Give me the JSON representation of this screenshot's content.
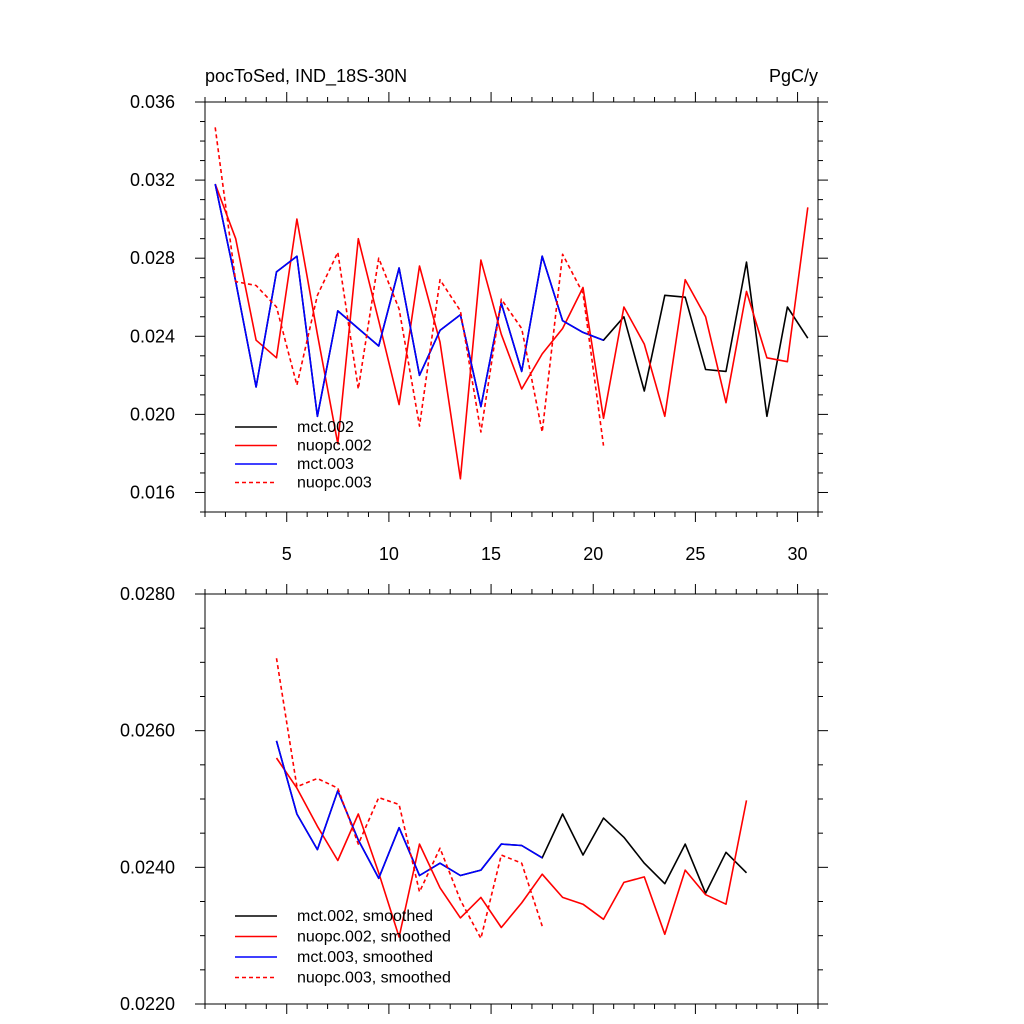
{
  "chart_data": [
    {
      "type": "line",
      "title_left": "pocToSed, IND_18S-30N",
      "title_right": "PgC/y",
      "xlabel": "",
      "ylabel": "",
      "xlim": [
        1,
        31
      ],
      "ylim": [
        0.015,
        0.036
      ],
      "xticks": [
        5,
        10,
        15,
        20,
        25,
        30
      ],
      "xtick_labels": [
        "5",
        "10",
        "15",
        "20",
        "25",
        "30"
      ],
      "yticks": [
        0.016,
        0.02,
        0.024,
        0.028,
        0.032,
        0.036
      ],
      "ytick_labels": [
        "0.016",
        "0.020",
        "0.024",
        "0.028",
        "0.032",
        "0.036"
      ],
      "legend_position": "bottom-left",
      "series": [
        {
          "name": "mct.002",
          "color": "#000000",
          "dash": "solid",
          "x": [
            1.5,
            2.5,
            3.5,
            4.5,
            5.5,
            6.5,
            7.5,
            8.5,
            9.5,
            10.5,
            11.5,
            12.5,
            13.5,
            14.5,
            15.5,
            16.5,
            17.5,
            18.5,
            19.5,
            20.5,
            21.5,
            22.5,
            23.5,
            24.5,
            25.5,
            26.5,
            27.5,
            28.5,
            29.5,
            30.5
          ],
          "values": [
            0.0318,
            0.0268,
            0.0214,
            0.0273,
            0.0281,
            0.0199,
            0.0253,
            0.0244,
            0.0235,
            0.0275,
            0.022,
            0.0243,
            0.0251,
            0.0204,
            0.0257,
            0.0222,
            0.0281,
            0.0248,
            0.0242,
            0.0238,
            0.025,
            0.0212,
            0.0261,
            0.026,
            0.0223,
            0.0222,
            0.0278,
            0.0199,
            0.0255,
            0.0239
          ]
        },
        {
          "name": "nuopc.002",
          "color": "#ff0000",
          "dash": "solid",
          "x": [
            1.5,
            2.5,
            3.5,
            4.5,
            5.5,
            6.5,
            7.5,
            8.5,
            9.5,
            10.5,
            11.5,
            12.5,
            13.5,
            14.5,
            15.5,
            16.5,
            17.5,
            18.5,
            19.5,
            20.5,
            21.5,
            22.5,
            23.5,
            24.5,
            25.5,
            26.5,
            27.5,
            28.5,
            29.5,
            30.5
          ],
          "values": [
            0.0318,
            0.029,
            0.0238,
            0.0229,
            0.03,
            0.0241,
            0.0185,
            0.029,
            0.0248,
            0.0205,
            0.0276,
            0.0237,
            0.0167,
            0.0279,
            0.0241,
            0.0213,
            0.0231,
            0.0244,
            0.0265,
            0.0198,
            0.0255,
            0.0236,
            0.0199,
            0.0269,
            0.025,
            0.0206,
            0.0263,
            0.0229,
            0.0227,
            0.0306
          ]
        },
        {
          "name": "mct.003",
          "color": "#0000ff",
          "dash": "solid",
          "x": [
            1.5,
            2.5,
            3.5,
            4.5,
            5.5,
            6.5,
            7.5,
            8.5,
            9.5,
            10.5,
            11.5,
            12.5,
            13.5,
            14.5,
            15.5,
            16.5,
            17.5,
            18.5,
            19.5,
            20.5
          ],
          "values": [
            0.0318,
            0.0268,
            0.0214,
            0.0273,
            0.0281,
            0.0199,
            0.0253,
            0.0244,
            0.0235,
            0.0275,
            0.022,
            0.0243,
            0.0251,
            0.0204,
            0.0257,
            0.0222,
            0.0281,
            0.0248,
            0.0242,
            0.0238
          ]
        },
        {
          "name": "nuopc.003",
          "color": "#ff0000",
          "dash": "dashed",
          "x": [
            1.5,
            2.5,
            3.5,
            4.5,
            5.5,
            6.5,
            7.5,
            8.5,
            9.5,
            10.5,
            11.5,
            12.5,
            13.5,
            14.5,
            15.5,
            16.5,
            17.5,
            18.5,
            19.5,
            20.5
          ],
          "values": [
            0.0347,
            0.0268,
            0.0266,
            0.0255,
            0.0215,
            0.0261,
            0.0283,
            0.0213,
            0.028,
            0.0254,
            0.0194,
            0.0269,
            0.0253,
            0.0191,
            0.0259,
            0.0244,
            0.0191,
            0.0282,
            0.0262,
            0.0184
          ]
        }
      ]
    },
    {
      "type": "line",
      "title_left": "",
      "title_right": "",
      "xlabel": "",
      "ylabel": "",
      "xlim": [
        1,
        31
      ],
      "ylim": [
        0.022,
        0.028
      ],
      "xticks": [
        5,
        10,
        15,
        20,
        25,
        30
      ],
      "xtick_labels": [],
      "yticks": [
        0.022,
        0.024,
        0.026,
        0.028
      ],
      "ytick_labels": [
        "0.0220",
        "0.0240",
        "0.0260",
        "0.0280"
      ],
      "legend_position": "bottom-left",
      "series": [
        {
          "name": "mct.002, smoothed",
          "color": "#000000",
          "dash": "solid",
          "x": [
            4.5,
            5.5,
            6.5,
            7.5,
            8.5,
            9.5,
            10.5,
            11.5,
            12.5,
            13.5,
            14.5,
            15.5,
            16.5,
            17.5,
            18.5,
            19.5,
            20.5,
            21.5,
            22.5,
            23.5,
            24.5,
            25.5,
            26.5,
            27.5
          ],
          "values": [
            0.02585,
            0.02478,
            0.02426,
            0.02512,
            0.0244,
            0.02384,
            0.02458,
            0.02388,
            0.02406,
            0.02388,
            0.02396,
            0.02434,
            0.02432,
            0.02414,
            0.02478,
            0.02418,
            0.02472,
            0.02444,
            0.02406,
            0.02376,
            0.02434,
            0.02362,
            0.02422,
            0.02392
          ]
        },
        {
          "name": "nuopc.002, smoothed",
          "color": "#ff0000",
          "dash": "solid",
          "x": [
            4.5,
            5.5,
            6.5,
            7.5,
            8.5,
            9.5,
            10.5,
            11.5,
            12.5,
            13.5,
            14.5,
            15.5,
            16.5,
            17.5,
            18.5,
            19.5,
            20.5,
            21.5,
            22.5,
            23.5,
            24.5,
            25.5,
            26.5,
            27.5
          ],
          "values": [
            0.0256,
            0.02516,
            0.0246,
            0.0241,
            0.02478,
            0.02392,
            0.02298,
            0.02434,
            0.0237,
            0.02326,
            0.02356,
            0.02312,
            0.02348,
            0.0239,
            0.02356,
            0.02346,
            0.02324,
            0.02378,
            0.02386,
            0.02302,
            0.02396,
            0.0236,
            0.02346,
            0.02498
          ]
        },
        {
          "name": "mct.003, smoothed",
          "color": "#0000ff",
          "dash": "solid",
          "x": [
            4.5,
            5.5,
            6.5,
            7.5,
            8.5,
            9.5,
            10.5,
            11.5,
            12.5,
            13.5,
            14.5,
            15.5,
            16.5,
            17.5
          ],
          "values": [
            0.02585,
            0.02478,
            0.02426,
            0.02512,
            0.0244,
            0.02384,
            0.02458,
            0.02388,
            0.02406,
            0.02388,
            0.02396,
            0.02434,
            0.02432,
            0.02414
          ]
        },
        {
          "name": "nuopc.003, smoothed",
          "color": "#ff0000",
          "dash": "dashed",
          "x": [
            4.5,
            5.5,
            6.5,
            7.5,
            8.5,
            9.5,
            10.5,
            11.5,
            12.5,
            13.5,
            14.5,
            15.5,
            16.5,
            17.5
          ],
          "values": [
            0.02706,
            0.02518,
            0.0253,
            0.02516,
            0.02434,
            0.02502,
            0.02492,
            0.02364,
            0.02428,
            0.02352,
            0.02296,
            0.02418,
            0.02406,
            0.02314
          ]
        }
      ]
    }
  ]
}
